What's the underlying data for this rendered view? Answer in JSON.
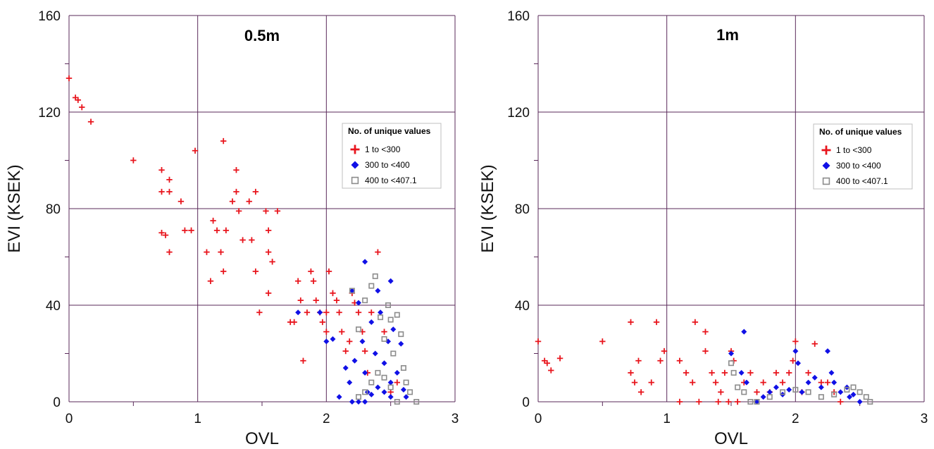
{
  "chart_data": [
    {
      "type": "scatter",
      "title": "0.5m",
      "xlabel": "OVL",
      "ylabel": "EVI (KSEK)",
      "xlim": [
        0,
        3
      ],
      "ylim": [
        0,
        160
      ],
      "xticks": [
        "0",
        "1",
        "2",
        "3"
      ],
      "yticks": [
        "0",
        "40",
        "80",
        "120",
        "160"
      ],
      "grid": true,
      "legend": {
        "title": "No. of unique values",
        "placement": "center-right",
        "entries": [
          "1 to <300",
          "300 to <400",
          "400 to <407.1"
        ]
      },
      "series": [
        {
          "name": "1 to <300",
          "marker": "plus",
          "color": "#e8141c",
          "points": [
            [
              0.0,
              134
            ],
            [
              0.05,
              126
            ],
            [
              0.07,
              125
            ],
            [
              0.1,
              122
            ],
            [
              0.17,
              116
            ],
            [
              0.5,
              100
            ],
            [
              0.72,
              96
            ],
            [
              0.72,
              87
            ],
            [
              0.78,
              87
            ],
            [
              0.78,
              92
            ],
            [
              0.87,
              83
            ],
            [
              0.98,
              104
            ],
            [
              0.72,
              70
            ],
            [
              0.75,
              69
            ],
            [
              0.78,
              62
            ],
            [
              0.9,
              71
            ],
            [
              0.95,
              71
            ],
            [
              1.07,
              62
            ],
            [
              1.1,
              50
            ],
            [
              1.12,
              75
            ],
            [
              1.15,
              71
            ],
            [
              1.18,
              62
            ],
            [
              1.2,
              54
            ],
            [
              1.2,
              108
            ],
            [
              1.22,
              71
            ],
            [
              1.27,
              83
            ],
            [
              1.3,
              87
            ],
            [
              1.3,
              96
            ],
            [
              1.32,
              79
            ],
            [
              1.35,
              67
            ],
            [
              1.4,
              83
            ],
            [
              1.42,
              67
            ],
            [
              1.45,
              87
            ],
            [
              1.45,
              54
            ],
            [
              1.48,
              37
            ],
            [
              1.53,
              79
            ],
            [
              1.55,
              71
            ],
            [
              1.55,
              62
            ],
            [
              1.58,
              58
            ],
            [
              1.55,
              45
            ],
            [
              1.62,
              79
            ],
            [
              1.72,
              33
            ],
            [
              1.75,
              33
            ],
            [
              1.78,
              50
            ],
            [
              1.8,
              42
            ],
            [
              1.82,
              17
            ],
            [
              1.85,
              37
            ],
            [
              1.88,
              54
            ],
            [
              1.9,
              50
            ],
            [
              1.92,
              42
            ],
            [
              1.95,
              37
            ],
            [
              1.97,
              33
            ],
            [
              2.0,
              37
            ],
            [
              2.02,
              54
            ],
            [
              2.05,
              45
            ],
            [
              2.0,
              29
            ],
            [
              2.08,
              42
            ],
            [
              2.1,
              37
            ],
            [
              2.12,
              29
            ],
            [
              2.15,
              21
            ],
            [
              2.18,
              25
            ],
            [
              2.2,
              45
            ],
            [
              2.22,
              41
            ],
            [
              2.25,
              37
            ],
            [
              2.28,
              29
            ],
            [
              2.3,
              21
            ],
            [
              2.32,
              12
            ],
            [
              2.35,
              37
            ],
            [
              2.4,
              62
            ],
            [
              2.45,
              29
            ],
            [
              2.5,
              4
            ],
            [
              2.55,
              8
            ]
          ]
        },
        {
          "name": "300 to <400",
          "marker": "diamond",
          "color": "#1010e6",
          "points": [
            [
              1.78,
              37
            ],
            [
              1.95,
              37
            ],
            [
              2.0,
              25
            ],
            [
              2.05,
              26
            ],
            [
              2.1,
              2
            ],
            [
              2.15,
              14
            ],
            [
              2.18,
              8
            ],
            [
              2.2,
              46
            ],
            [
              2.22,
              17
            ],
            [
              2.25,
              41
            ],
            [
              2.28,
              25
            ],
            [
              2.3,
              58
            ],
            [
              2.3,
              12
            ],
            [
              2.32,
              4
            ],
            [
              2.35,
              33
            ],
            [
              2.38,
              20
            ],
            [
              2.4,
              46
            ],
            [
              2.42,
              37
            ],
            [
              2.45,
              16
            ],
            [
              2.48,
              25
            ],
            [
              2.5,
              50
            ],
            [
              2.5,
              8
            ],
            [
              2.52,
              30
            ],
            [
              2.55,
              12
            ],
            [
              2.58,
              24
            ],
            [
              2.6,
              5
            ],
            [
              2.62,
              2
            ],
            [
              2.5,
              2
            ],
            [
              2.45,
              4
            ],
            [
              2.4,
              6
            ],
            [
              2.35,
              3
            ],
            [
              2.25,
              0
            ],
            [
              2.2,
              0
            ],
            [
              2.3,
              0
            ]
          ]
        },
        {
          "name": "400 to <407.1",
          "marker": "square",
          "color": "#8c8c8c",
          "points": [
            [
              2.2,
              46
            ],
            [
              2.25,
              30
            ],
            [
              2.3,
              42
            ],
            [
              2.35,
              48
            ],
            [
              2.38,
              52
            ],
            [
              2.42,
              35
            ],
            [
              2.45,
              26
            ],
            [
              2.48,
              40
            ],
            [
              2.5,
              34
            ],
            [
              2.52,
              20
            ],
            [
              2.55,
              36
            ],
            [
              2.58,
              28
            ],
            [
              2.6,
              14
            ],
            [
              2.62,
              8
            ],
            [
              2.65,
              4
            ],
            [
              2.7,
              0
            ],
            [
              2.55,
              0
            ],
            [
              2.5,
              6
            ],
            [
              2.45,
              10
            ],
            [
              2.4,
              12
            ],
            [
              2.35,
              8
            ],
            [
              2.3,
              4
            ],
            [
              2.25,
              2
            ]
          ]
        }
      ]
    },
    {
      "type": "scatter",
      "title": "1m",
      "xlabel": "OVL",
      "ylabel": "EVI (KSEK)",
      "xlim": [
        0,
        3
      ],
      "ylim": [
        0,
        160
      ],
      "xticks": [
        "0",
        "1",
        "2",
        "3"
      ],
      "yticks": [
        "0",
        "40",
        "80",
        "120",
        "160"
      ],
      "grid": true,
      "legend": {
        "title": "No. of unique values",
        "placement": "center-right",
        "entries": [
          "1 to <300",
          "300 to <400",
          "400 to <407.1"
        ]
      },
      "series": [
        {
          "name": "1 to <300",
          "marker": "plus",
          "color": "#e8141c",
          "points": [
            [
              0.0,
              25
            ],
            [
              0.05,
              17
            ],
            [
              0.07,
              16
            ],
            [
              0.1,
              13
            ],
            [
              0.17,
              18
            ],
            [
              0.5,
              25
            ],
            [
              0.72,
              33
            ],
            [
              0.72,
              12
            ],
            [
              0.75,
              8
            ],
            [
              0.78,
              17
            ],
            [
              0.8,
              4
            ],
            [
              0.88,
              8
            ],
            [
              0.92,
              33
            ],
            [
              0.95,
              17
            ],
            [
              0.98,
              21
            ],
            [
              1.1,
              17
            ],
            [
              1.1,
              0
            ],
            [
              1.15,
              12
            ],
            [
              1.2,
              8
            ],
            [
              1.22,
              33
            ],
            [
              1.25,
              0
            ],
            [
              1.3,
              29
            ],
            [
              1.3,
              21
            ],
            [
              1.35,
              12
            ],
            [
              1.38,
              8
            ],
            [
              1.4,
              0
            ],
            [
              1.42,
              4
            ],
            [
              1.45,
              12
            ],
            [
              1.48,
              0
            ],
            [
              1.5,
              21
            ],
            [
              1.52,
              17
            ],
            [
              1.55,
              0
            ],
            [
              1.6,
              8
            ],
            [
              1.65,
              12
            ],
            [
              1.7,
              4
            ],
            [
              1.75,
              8
            ],
            [
              1.8,
              4
            ],
            [
              1.85,
              12
            ],
            [
              1.9,
              8
            ],
            [
              1.95,
              12
            ],
            [
              1.98,
              17
            ],
            [
              2.0,
              25
            ],
            [
              2.05,
              4
            ],
            [
              2.1,
              12
            ],
            [
              2.15,
              24
            ],
            [
              2.2,
              8
            ],
            [
              2.25,
              8
            ],
            [
              2.3,
              4
            ],
            [
              2.35,
              0
            ]
          ]
        },
        {
          "name": "300 to <400",
          "marker": "diamond",
          "color": "#1010e6",
          "points": [
            [
              1.5,
              20
            ],
            [
              1.58,
              12
            ],
            [
              1.6,
              29
            ],
            [
              1.62,
              8
            ],
            [
              1.7,
              0
            ],
            [
              1.75,
              2
            ],
            [
              1.8,
              4
            ],
            [
              1.85,
              6
            ],
            [
              1.9,
              3
            ],
            [
              1.95,
              5
            ],
            [
              2.0,
              21
            ],
            [
              2.02,
              16
            ],
            [
              2.05,
              4
            ],
            [
              2.1,
              8
            ],
            [
              2.15,
              10
            ],
            [
              2.2,
              6
            ],
            [
              2.25,
              21
            ],
            [
              2.28,
              12
            ],
            [
              2.3,
              8
            ],
            [
              2.35,
              4
            ],
            [
              2.4,
              6
            ],
            [
              2.42,
              2
            ],
            [
              2.45,
              3
            ],
            [
              2.5,
              0
            ]
          ]
        },
        {
          "name": "400 to <407.1",
          "marker": "square",
          "color": "#8c8c8c",
          "points": [
            [
              1.5,
              16
            ],
            [
              1.52,
              12
            ],
            [
              1.55,
              6
            ],
            [
              1.6,
              4
            ],
            [
              1.65,
              0
            ],
            [
              1.7,
              0
            ],
            [
              1.8,
              2
            ],
            [
              1.9,
              4
            ],
            [
              2.0,
              5
            ],
            [
              2.1,
              4
            ],
            [
              2.2,
              2
            ],
            [
              2.3,
              3
            ],
            [
              2.4,
              5
            ],
            [
              2.45,
              6
            ],
            [
              2.5,
              4
            ],
            [
              2.55,
              2
            ],
            [
              2.58,
              0
            ]
          ]
        }
      ]
    }
  ]
}
